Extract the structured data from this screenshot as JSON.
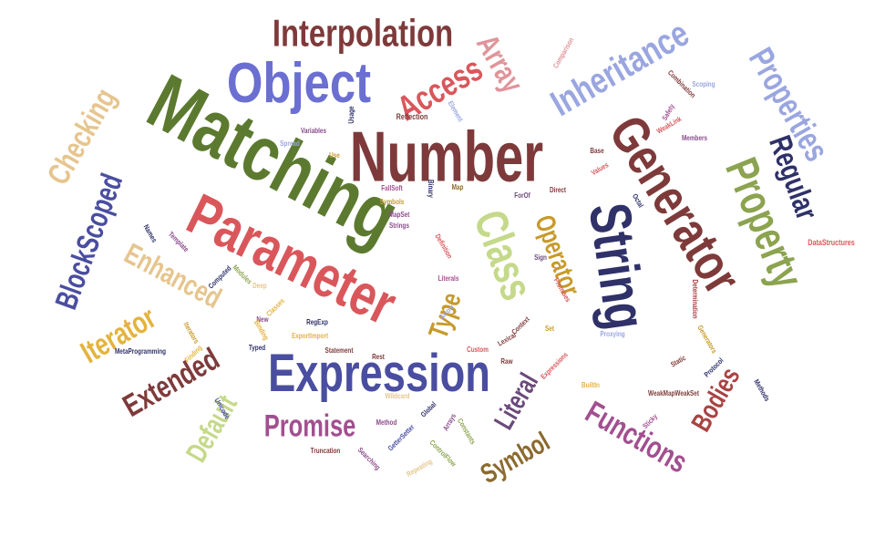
{
  "palette": {
    "maroon": "#7e3a3a",
    "olive": "#5c7a2f",
    "blue": "#6b6fd1",
    "navy": "#2f3168",
    "crimson": "#d9575b",
    "pink": "#e0949a",
    "lavender": "#9aa6e0",
    "sage": "#8ca34f",
    "tan": "#e6c58e",
    "gold": "#c79a2a",
    "mustard": "#e3b33c",
    "lime": "#c5d98a",
    "purple": "#8a4a8a",
    "magenta": "#a24f8f",
    "indigo": "#4a4ea0",
    "brown": "#8a6a2e",
    "red": "#a94444",
    "plum": "#6a4a7a",
    "paleolive": "#a8b86e"
  },
  "words": [
    "Matching",
    "Number",
    "Parameter",
    "Object",
    "String",
    "Generator",
    "Class",
    "Expression",
    "Interpolation",
    "Property",
    "Inheritance",
    "Properties",
    "Access",
    "Array",
    "Regular",
    "Checking",
    "BlockScoped",
    "Enhanced",
    "Extended",
    "Iterator",
    "Default",
    "Promise",
    "Operator",
    "Type",
    "Literal",
    "Symbol",
    "Functions",
    "Bodies",
    "Reflection",
    "Spread",
    "Variables",
    "Usage",
    "Use",
    "Element",
    "Comparison",
    "Combination",
    "Scoping",
    "Safety",
    "WeakLink",
    "Members",
    "Base",
    "Values",
    "Octal",
    "FallSoft",
    "Binary",
    "Map",
    "Symbols",
    "MapSet",
    "Strings",
    "ForOf",
    "Direct",
    "Names",
    "Template",
    "Computed",
    "Modules",
    "Deep",
    "Definition",
    "Literals",
    "Sign",
    "Arrow",
    "Promises",
    "Determination",
    "DataStructures",
    "New",
    "Classes",
    "RegExp",
    "Binding",
    "ExportImport",
    "Iterators",
    "MetaProgramming",
    "Finding",
    "Typed",
    "Statement",
    "Rest",
    "Custom",
    "Lexical",
    "Context",
    "Raw",
    "Set",
    "Proxying",
    "Static",
    "Generators",
    "Protocol",
    "Methods",
    "Unicode",
    "Wildcard",
    "Expressions",
    "BuiltIn",
    "WeakMapWeakSet",
    "Method",
    "Global",
    "Arrays",
    "Constants",
    "GetterSetter",
    "ControlFlow",
    "Sticky",
    "Truncation",
    "Searching",
    "Repeating"
  ]
}
